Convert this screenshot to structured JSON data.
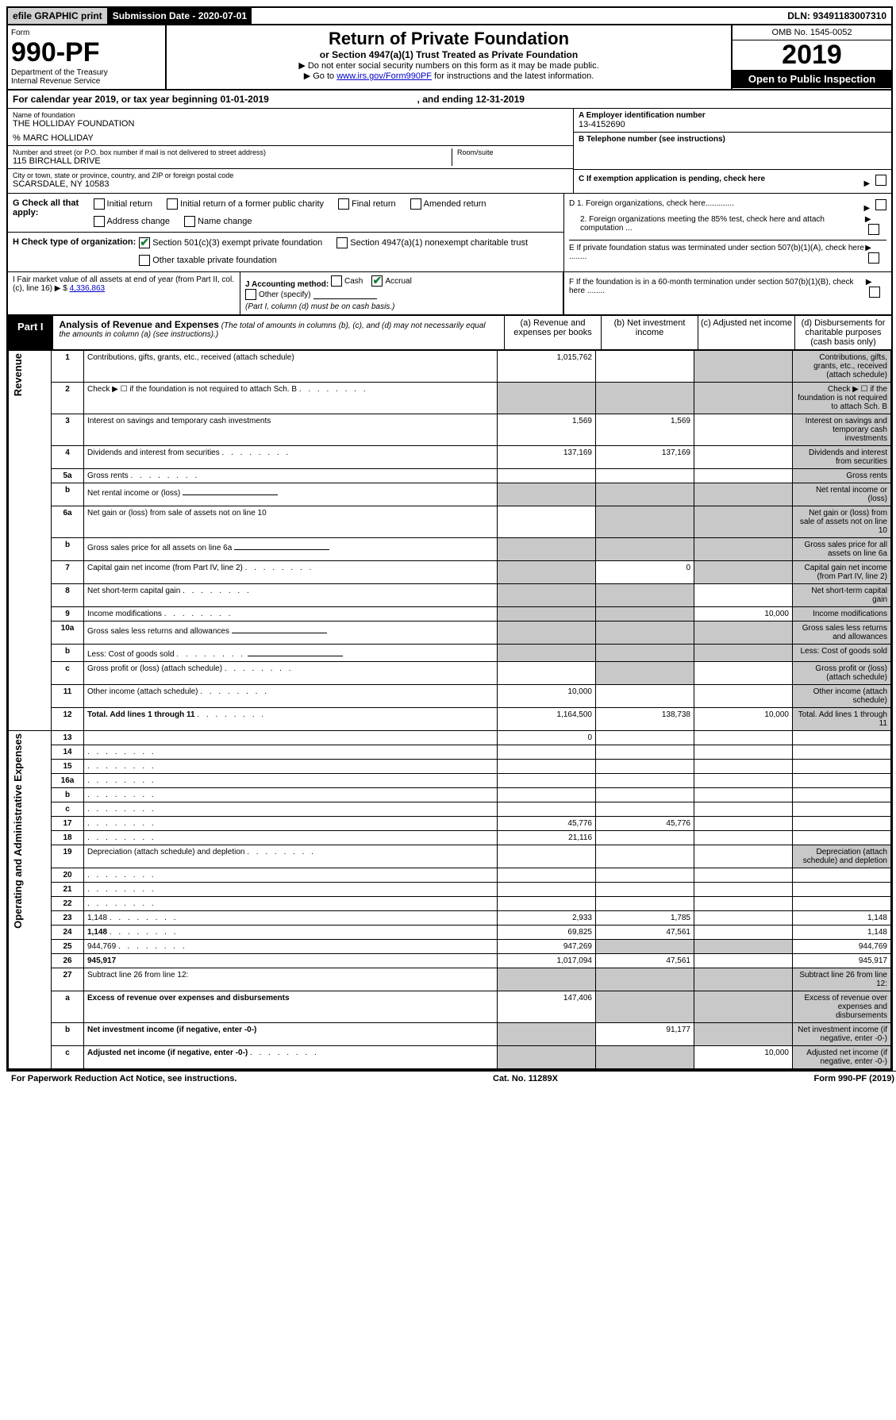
{
  "topbar": {
    "efile": "efile GRAPHIC print",
    "subdate_label": "Submission Date - 2020-07-01",
    "dln": "DLN: 93491183007310"
  },
  "header": {
    "form_word": "Form",
    "form_num": "990-PF",
    "dept": "Department of the Treasury",
    "irs": "Internal Revenue Service",
    "title": "Return of Private Foundation",
    "subtitle": "or Section 4947(a)(1) Trust Treated as Private Foundation",
    "note1": "▶ Do not enter social security numbers on this form as it may be made public.",
    "note2_pre": "▶ Go to ",
    "note2_link": "www.irs.gov/Form990PF",
    "note2_post": " for instructions and the latest information.",
    "omb": "OMB No. 1545-0052",
    "year": "2019",
    "open": "Open to Public Inspection"
  },
  "calyear": {
    "text_pre": "For calendar year 2019, or tax year beginning ",
    "begin": "01-01-2019",
    "mid": " , and ending ",
    "end": "12-31-2019"
  },
  "entity": {
    "name_label": "Name of foundation",
    "name": "THE HOLLIDAY FOUNDATION",
    "care_of": "% MARC HOLLIDAY",
    "addr_label": "Number and street (or P.O. box number if mail is not delivered to street address)",
    "addr": "115 BIRCHALL DRIVE",
    "room_label": "Room/suite",
    "city_label": "City or town, state or province, country, and ZIP or foreign postal code",
    "city": "SCARSDALE, NY  10583",
    "ein_label": "A Employer identification number",
    "ein": "13-4152690",
    "phone_label": "B Telephone number (see instructions)",
    "c_label": "C If exemption application is pending, check here"
  },
  "checks": {
    "g_label": "G Check all that apply:",
    "g_opts": [
      "Initial return",
      "Initial return of a former public charity",
      "Final return",
      "Amended return",
      "Address change",
      "Name change"
    ],
    "h_label": "H Check type of organization:",
    "h_opts": [
      "Section 501(c)(3) exempt private foundation",
      "Section 4947(a)(1) nonexempt charitable trust",
      "Other taxable private foundation"
    ],
    "h_checked_idx": 0
  },
  "d_section": {
    "d1": "D 1. Foreign organizations, check here.............",
    "d2": "2. Foreign organizations meeting the 85% test, check here and attach computation ...",
    "e": "E  If private foundation status was terminated under section 507(b)(1)(A), check here ........",
    "f": "F  If the foundation is in a 60-month termination under section 507(b)(1)(B), check here ........"
  },
  "ij": {
    "i_label": "I Fair market value of all assets at end of year (from Part II, col. (c), line 16) ▶ $ ",
    "i_val": "4,336,863",
    "j_label": "J Accounting method:",
    "j_cash": "Cash",
    "j_accrual": "Accrual",
    "j_other": "Other (specify)",
    "j_note": "(Part I, column (d) must be on cash basis.)"
  },
  "part1": {
    "label": "Part I",
    "title": "Analysis of Revenue and Expenses",
    "desc": "(The total of amounts in columns (b), (c), and (d) may not necessarily equal the amounts in column (a) (see instructions).)",
    "col_a": "(a)   Revenue and expenses per books",
    "col_b": "(b)  Net investment income",
    "col_c": "(c)  Adjusted net income",
    "col_d": "(d)  Disbursements for charitable purposes (cash basis only)"
  },
  "sides": {
    "rev": "Revenue",
    "exp": "Operating and Administrative Expenses"
  },
  "rows": [
    {
      "n": "1",
      "d": "Contributions, gifts, grants, etc., received (attach schedule)",
      "a": "1,015,762",
      "b": "",
      "c_shade": true,
      "d_shade": true
    },
    {
      "n": "2",
      "d": "Check ▶ ☐ if the foundation is not required to attach Sch. B",
      "a_shade": true,
      "b_shade": true,
      "c_shade": true,
      "d_shade": true,
      "dots": true
    },
    {
      "n": "3",
      "d": "Interest on savings and temporary cash investments",
      "a": "1,569",
      "b": "1,569",
      "c": "",
      "d_shade": true
    },
    {
      "n": "4",
      "d": "Dividends and interest from securities",
      "a": "137,169",
      "b": "137,169",
      "c": "",
      "d_shade": true,
      "dots": true
    },
    {
      "n": "5a",
      "d": "Gross rents",
      "a": "",
      "b": "",
      "c": "",
      "d_shade": true,
      "dots": true
    },
    {
      "n": "b",
      "d": "Net rental income or (loss)",
      "a_shade": true,
      "b_shade": true,
      "c_shade": true,
      "d_shade": true,
      "inline": true
    },
    {
      "n": "6a",
      "d": "Net gain or (loss) from sale of assets not on line 10",
      "a": "",
      "b_shade": true,
      "c_shade": true,
      "d_shade": true
    },
    {
      "n": "b",
      "d": "Gross sales price for all assets on line 6a",
      "a_shade": true,
      "b_shade": true,
      "c_shade": true,
      "d_shade": true,
      "inline": true
    },
    {
      "n": "7",
      "d": "Capital gain net income (from Part IV, line 2)",
      "a_shade": true,
      "b": "0",
      "c_shade": true,
      "d_shade": true,
      "dots": true
    },
    {
      "n": "8",
      "d": "Net short-term capital gain",
      "a_shade": true,
      "b_shade": true,
      "c": "",
      "d_shade": true,
      "dots": true
    },
    {
      "n": "9",
      "d": "Income modifications",
      "a_shade": true,
      "b_shade": true,
      "c": "10,000",
      "d_shade": true,
      "dots": true
    },
    {
      "n": "10a",
      "d": "Gross sales less returns and allowances",
      "a_shade": true,
      "b_shade": true,
      "c_shade": true,
      "d_shade": true,
      "inline": true
    },
    {
      "n": "b",
      "d": "Less: Cost of goods sold",
      "a_shade": true,
      "b_shade": true,
      "c_shade": true,
      "d_shade": true,
      "inline": true,
      "dots": true
    },
    {
      "n": "c",
      "d": "Gross profit or (loss) (attach schedule)",
      "a": "",
      "b_shade": true,
      "c": "",
      "d_shade": true,
      "dots": true
    },
    {
      "n": "11",
      "d": "Other income (attach schedule)",
      "a": "10,000",
      "b": "",
      "c": "",
      "d_shade": true,
      "dots": true
    },
    {
      "n": "12",
      "d": "Total. Add lines 1 through 11",
      "a": "1,164,500",
      "b": "138,738",
      "c": "10,000",
      "d_shade": true,
      "bold": true,
      "dots": true
    },
    {
      "n": "13",
      "d": "",
      "a": "0",
      "b": "",
      "c": ""
    },
    {
      "n": "14",
      "d": "",
      "a": "",
      "b": "",
      "c": "",
      "dots": true
    },
    {
      "n": "15",
      "d": "",
      "a": "",
      "b": "",
      "c": "",
      "dots": true
    },
    {
      "n": "16a",
      "d": "",
      "a": "",
      "b": "",
      "c": "",
      "dots": true
    },
    {
      "n": "b",
      "d": "",
      "a": "",
      "b": "",
      "c": "",
      "dots": true
    },
    {
      "n": "c",
      "d": "",
      "a": "",
      "b": "",
      "c": "",
      "dots": true
    },
    {
      "n": "17",
      "d": "",
      "a": "45,776",
      "b": "45,776",
      "c": "",
      "dots": true
    },
    {
      "n": "18",
      "d": "",
      "a": "21,116",
      "b": "",
      "c": "",
      "dots": true
    },
    {
      "n": "19",
      "d": "Depreciation (attach schedule) and depletion",
      "a": "",
      "b": "",
      "c": "",
      "d_shade": true,
      "dots": true
    },
    {
      "n": "20",
      "d": "",
      "a": "",
      "b": "",
      "c": "",
      "dots": true
    },
    {
      "n": "21",
      "d": "",
      "a": "",
      "b": "",
      "c": "",
      "dots": true
    },
    {
      "n": "22",
      "d": "",
      "a": "",
      "b": "",
      "c": "",
      "dots": true
    },
    {
      "n": "23",
      "d": "1,148",
      "a": "2,933",
      "b": "1,785",
      "c": "",
      "dots": true
    },
    {
      "n": "24",
      "d": "1,148",
      "a": "69,825",
      "b": "47,561",
      "c": "",
      "bold": true,
      "dots": true
    },
    {
      "n": "25",
      "d": "944,769",
      "a": "947,269",
      "b_shade": true,
      "c_shade": true,
      "dots": true
    },
    {
      "n": "26",
      "d": "945,917",
      "a": "1,017,094",
      "b": "47,561",
      "c": "",
      "bold": true
    },
    {
      "n": "27",
      "d": "Subtract line 26 from line 12:",
      "a_shade": true,
      "b_shade": true,
      "c_shade": true,
      "d_shade": true
    },
    {
      "n": "a",
      "d": "Excess of revenue over expenses and disbursements",
      "a": "147,406",
      "b_shade": true,
      "c_shade": true,
      "d_shade": true,
      "bold": true
    },
    {
      "n": "b",
      "d": "Net investment income (if negative, enter -0-)",
      "a_shade": true,
      "b": "91,177",
      "c_shade": true,
      "d_shade": true,
      "bold": true
    },
    {
      "n": "c",
      "d": "Adjusted net income (if negative, enter -0-)",
      "a_shade": true,
      "b_shade": true,
      "c": "10,000",
      "d_shade": true,
      "bold": true,
      "dots": true
    }
  ],
  "footer": {
    "left": "For Paperwork Reduction Act Notice, see instructions.",
    "mid": "Cat. No. 11289X",
    "right": "Form 990-PF (2019)"
  }
}
